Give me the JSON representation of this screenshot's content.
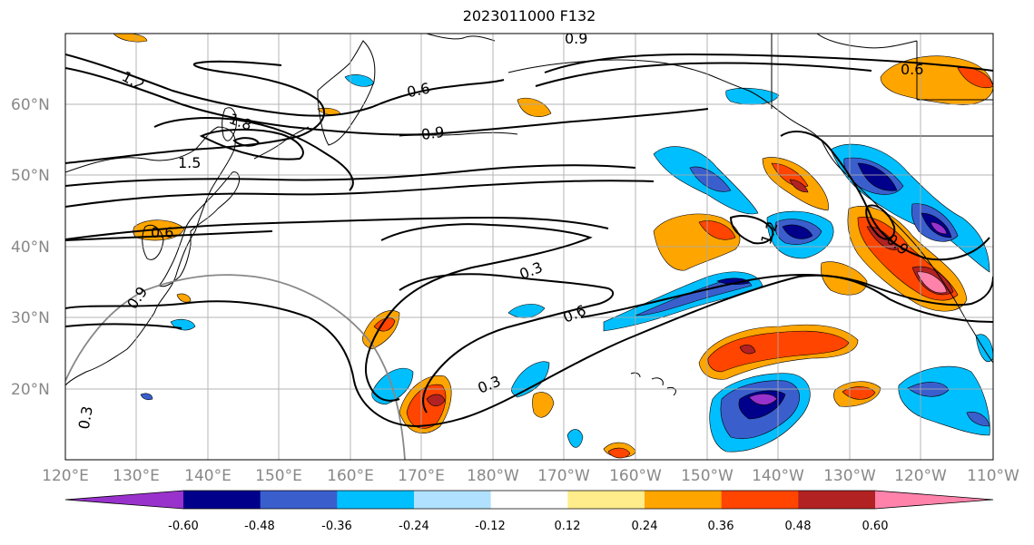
{
  "title": "2023011000 F132",
  "lat_labels": [
    "60°N",
    "50°N",
    "40°N",
    "30°N",
    "20°N"
  ],
  "lon_labels": [
    "120°E",
    "130°E",
    "140°E",
    "150°E",
    "160°E",
    "170°E",
    "180°W",
    "170°W",
    "160°W",
    "150°W",
    "140°W",
    "130°W",
    "120°W",
    "110°W"
  ],
  "colorbar": {
    "tick_labels": [
      "-0.60",
      "-0.48",
      "-0.36",
      "-0.24",
      "-0.12",
      "0.12",
      "0.24",
      "0.36",
      "0.48",
      "0.60"
    ],
    "colors": [
      "#9932cc",
      "#00008b",
      "#3a5fcd",
      "#00bfff",
      "#b0e2ff",
      "#ffffff",
      "#ffec8b",
      "#ffa500",
      "#ff4500",
      "#b22222",
      "#ff82ab"
    ]
  },
  "contour_labels": [
    "1.2",
    "0.6",
    "0.9",
    "1.8",
    "1.5",
    "0.6",
    "0.3",
    "0.6",
    "0.3",
    "0.9",
    "0.6",
    "1.2",
    "0.9",
    "0.3",
    "0.9"
  ]
}
